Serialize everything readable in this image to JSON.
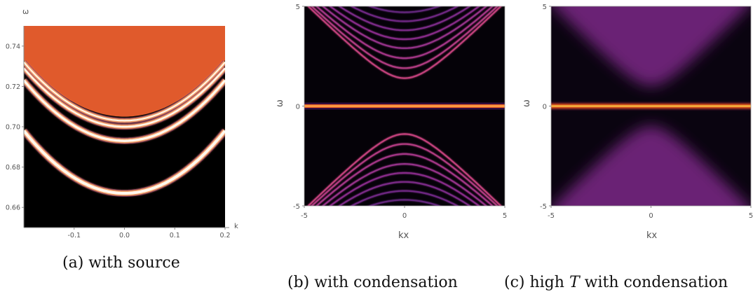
{
  "chart_data": [
    {
      "type": "heatmap",
      "caption": "(a) with source",
      "xlabel": "k",
      "ylabel": "ω",
      "xlim": [
        -0.2,
        0.2
      ],
      "ylim": [
        0.65,
        0.75
      ],
      "xticks": [
        "-0.1",
        "0.0",
        "0.1",
        "0.2"
      ],
      "xtick_values": [
        -0.1,
        0.0,
        0.1,
        0.2
      ],
      "yticks": [
        "0.66",
        "0.68",
        "0.70",
        "0.72",
        "0.74"
      ],
      "ytick_values": [
        0.66,
        0.68,
        0.7,
        0.72,
        0.74
      ],
      "filled_region": {
        "color": "#e05a2c",
        "boundary_min": 0.705,
        "boundary_at_edge": 0.733
      },
      "bands": [
        {
          "min": 0.667,
          "at_edge": 0.698,
          "brightness": 1.0
        },
        {
          "min": 0.693,
          "at_edge": 0.723,
          "brightness": 0.85
        },
        {
          "min": 0.7,
          "at_edge": 0.729,
          "brightness": 0.7
        },
        {
          "min": 0.703,
          "at_edge": 0.732,
          "brightness": 0.6
        }
      ]
    },
    {
      "type": "heatmap",
      "caption": "(b) with condensation",
      "xlabel": "kx",
      "ylabel": "ω",
      "xlim": [
        -5,
        5
      ],
      "ylim": [
        -5,
        5
      ],
      "xticks": [
        "-5",
        "0",
        "5"
      ],
      "xtick_values": [
        -5,
        0,
        5
      ],
      "yticks": [
        "-5",
        "0",
        "5"
      ],
      "ytick_values": [
        -5,
        0,
        5
      ],
      "flat_band": 0,
      "upper_band_minima": [
        1.4,
        1.9,
        2.4,
        2.9,
        3.35,
        3.8,
        4.25,
        4.7
      ],
      "lower_band_maxima": [
        -1.4,
        -1.9,
        -2.4,
        -2.9,
        -3.35,
        -3.8,
        -4.25,
        -4.7
      ]
    },
    {
      "type": "heatmap",
      "caption_pre": "(c) high ",
      "caption_sym": "T",
      "caption_post": " with condensation",
      "xlabel": "kx",
      "ylabel": "ω",
      "xlim": [
        -5,
        5
      ],
      "ylim": [
        -5,
        5
      ],
      "xticks": [
        "-5",
        "0",
        "5"
      ],
      "xtick_values": [
        -5,
        0,
        5
      ],
      "yticks": [
        "-5",
        "0",
        "5"
      ],
      "ytick_values": [
        -5,
        0,
        5
      ],
      "flat_band": 0,
      "gap_edge": 1.0
    }
  ]
}
